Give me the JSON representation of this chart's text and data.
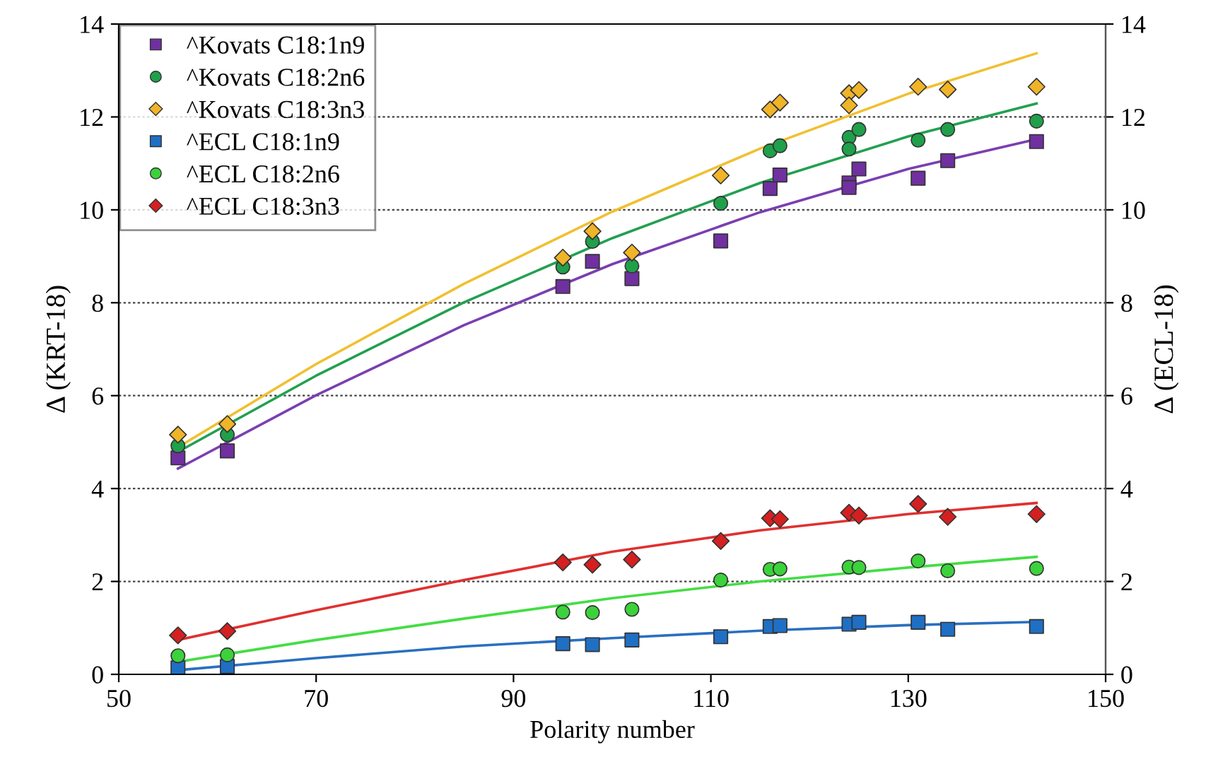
{
  "chart_data": {
    "type": "scatter",
    "xlabel": "Polarity number",
    "ylabel": "Δ (KRT-18)",
    "y2label": "Δ (ECL-18)",
    "xlim": [
      50,
      150
    ],
    "xticks": [
      50,
      70,
      90,
      110,
      130,
      150
    ],
    "ylim": [
      0,
      14
    ],
    "yticks": [
      0,
      2,
      4,
      6,
      8,
      10,
      12,
      14
    ],
    "y2lim": [
      0,
      14
    ],
    "y2ticks": [
      0,
      2,
      4,
      6,
      8,
      10,
      12,
      14
    ],
    "grid": "y",
    "legend": "top left",
    "series": [
      {
        "type": "line",
        "color": "#7a3fb0",
        "x": [
          56,
          70,
          85,
          100,
          115,
          130,
          143
        ],
        "values": [
          4.43,
          6.01,
          7.52,
          8.83,
          9.95,
          10.88,
          11.52
        ]
      },
      {
        "type": "line",
        "color": "#22a050",
        "x": [
          56,
          70,
          85,
          100,
          115,
          130,
          143
        ],
        "values": [
          4.79,
          6.43,
          8.01,
          9.39,
          10.58,
          11.58,
          12.29
        ]
      },
      {
        "type": "line",
        "color": "#f0c030",
        "x": [
          56,
          70,
          85,
          100,
          115,
          130,
          143
        ],
        "values": [
          4.89,
          6.68,
          8.41,
          9.96,
          11.32,
          12.5,
          13.37
        ]
      },
      {
        "type": "line",
        "color": "#2a6fc0",
        "x": [
          56,
          70,
          85,
          100,
          115,
          130,
          143
        ],
        "values": [
          0.09,
          0.35,
          0.6,
          0.78,
          0.94,
          1.06,
          1.13
        ]
      },
      {
        "type": "line",
        "color": "#44dd44",
        "x": [
          56,
          70,
          85,
          100,
          115,
          130,
          143
        ],
        "values": [
          0.27,
          0.74,
          1.2,
          1.64,
          2.0,
          2.3,
          2.53
        ]
      },
      {
        "type": "line",
        "color": "#e03030",
        "x": [
          56,
          70,
          85,
          100,
          115,
          130,
          143
        ],
        "values": [
          0.74,
          1.38,
          2.03,
          2.64,
          3.1,
          3.45,
          3.69
        ]
      },
      {
        "name": "^Kovats C18:1n9",
        "marker": "square",
        "color": "#7030a0",
        "x": [
          56,
          61,
          95,
          98,
          102,
          111,
          116,
          117,
          124,
          124,
          125,
          131,
          134,
          143
        ],
        "values": [
          4.66,
          4.81,
          8.35,
          8.89,
          8.52,
          9.33,
          10.46,
          10.75,
          10.58,
          10.48,
          10.88,
          10.68,
          11.06,
          11.47
        ]
      },
      {
        "name": "^Kovats C18:2n6",
        "marker": "circle",
        "color": "#20a04a",
        "x": [
          56,
          61,
          95,
          98,
          102,
          111,
          116,
          117,
          124,
          124,
          125,
          131,
          134,
          143
        ],
        "values": [
          4.92,
          5.16,
          8.77,
          9.32,
          8.79,
          10.14,
          11.27,
          11.38,
          11.56,
          11.31,
          11.73,
          11.5,
          11.73,
          11.91
        ]
      },
      {
        "name": "^Kovats C18:3n3",
        "marker": "diamond",
        "color": "#f0b428",
        "x": [
          56,
          61,
          95,
          98,
          102,
          111,
          116,
          117,
          124,
          124,
          125,
          131,
          134,
          143
        ],
        "values": [
          5.16,
          5.39,
          8.97,
          9.54,
          9.08,
          10.74,
          12.16,
          12.31,
          12.51,
          12.25,
          12.58,
          12.65,
          12.59,
          12.65
        ]
      },
      {
        "name": "^ECL C18:1n9",
        "marker": "square",
        "color": "#1f6fc5",
        "x": [
          56,
          61,
          95,
          98,
          102,
          111,
          116,
          117,
          124,
          125,
          131,
          134,
          143
        ],
        "values": [
          0.14,
          0.17,
          0.66,
          0.64,
          0.74,
          0.81,
          1.03,
          1.05,
          1.08,
          1.12,
          1.12,
          0.97,
          1.03
        ]
      },
      {
        "name": "^ECL C18:2n6",
        "marker": "circle",
        "color": "#3cd23c",
        "x": [
          56,
          61,
          95,
          98,
          102,
          111,
          116,
          117,
          124,
          125,
          131,
          134,
          143
        ],
        "values": [
          0.4,
          0.42,
          1.34,
          1.33,
          1.4,
          2.03,
          2.26,
          2.27,
          2.31,
          2.3,
          2.44,
          2.23,
          2.28
        ]
      },
      {
        "name": "^ECL C18:3n3",
        "marker": "diamond",
        "color": "#d42020",
        "x": [
          56,
          61,
          95,
          98,
          102,
          111,
          116,
          117,
          124,
          125,
          131,
          134,
          143
        ],
        "values": [
          0.84,
          0.93,
          2.41,
          2.36,
          2.47,
          2.87,
          3.36,
          3.34,
          3.48,
          3.42,
          3.67,
          3.39,
          3.45
        ]
      }
    ]
  }
}
